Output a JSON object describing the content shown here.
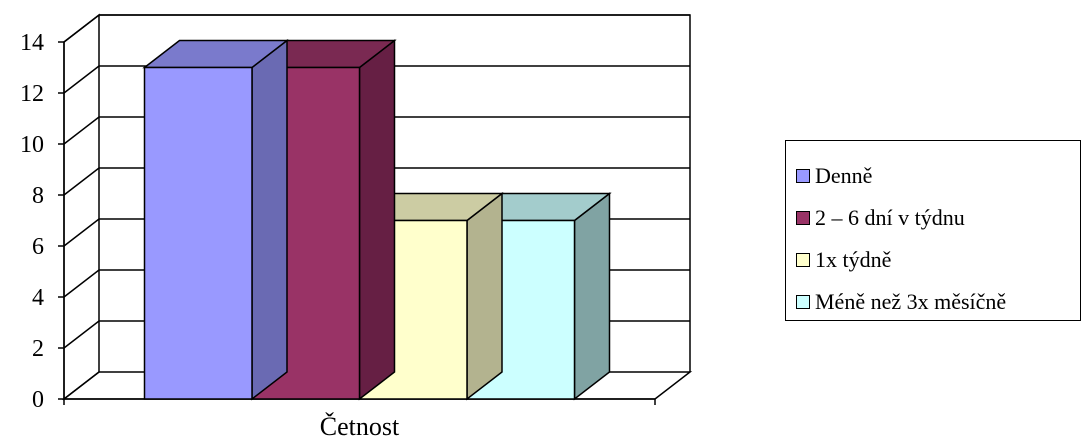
{
  "chart_data": {
    "type": "bar",
    "categories": [
      "Četnost"
    ],
    "series": [
      {
        "name": "Denně",
        "values": [
          13
        ],
        "color": "#9999ff",
        "top": "#7a7acc",
        "side": "#6a6ab3"
      },
      {
        "name": "2 – 6 dní v týdnu",
        "values": [
          13
        ],
        "color": "#993366",
        "top": "#7a2952",
        "side": "#661f44"
      },
      {
        "name": "1x týdně",
        "values": [
          7
        ],
        "color": "#ffffcc",
        "top": "#cccca3",
        "side": "#b3b38f"
      },
      {
        "name": "Méně než 3x měsíčně",
        "values": [
          7
        ],
        "color": "#ccffff",
        "top": "#a3cccc",
        "side": "#80a3a3"
      }
    ],
    "ylim": [
      0,
      14
    ],
    "yticks": [
      "0",
      "2",
      "4",
      "6",
      "8",
      "10",
      "12",
      "14"
    ],
    "grid": true,
    "legend": "right",
    "three_d": true
  }
}
